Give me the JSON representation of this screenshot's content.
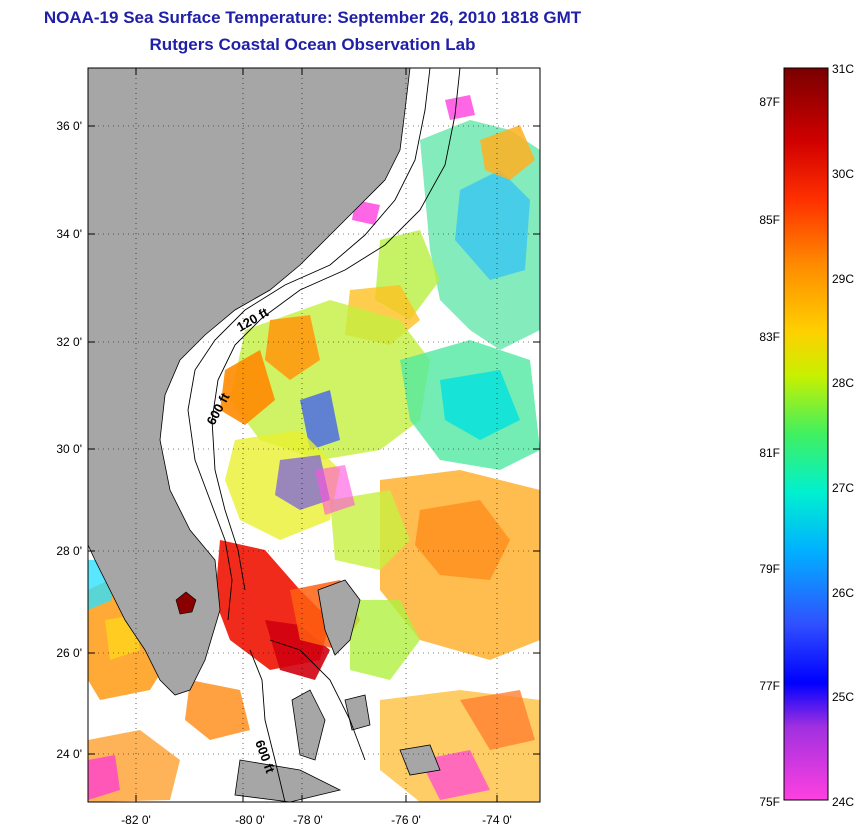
{
  "header": {
    "title": "NOAA-19 Sea Surface Temperature:  September 26, 2010 1818 GMT",
    "subtitle": "Rutgers Coastal Ocean Observation Lab"
  },
  "map": {
    "region": "US Southeast coast / Florida / Bahamas",
    "lon_ticks": [
      "-82 0'",
      "-80 0'",
      "-78 0'",
      "-76 0'",
      "-74 0'"
    ],
    "lat_ticks": [
      "36 0'",
      "34 0'",
      "32 0'",
      "30 0'",
      "28 0'",
      "26 0'",
      "24 0'"
    ],
    "contour_labels": [
      "120 ft",
      "600 ft",
      "600 ft"
    ],
    "colors": {
      "land": "#a6a6a6",
      "cloud": "#ffffff"
    }
  },
  "colorbar": {
    "celsius_labels": [
      "31C",
      "30C",
      "29C",
      "28C",
      "27C",
      "26C",
      "25C",
      "24C"
    ],
    "fahrenheit_labels": [
      "87F",
      "85F",
      "83F",
      "81F",
      "79F",
      "77F",
      "75F"
    ],
    "gradient": [
      "#7a0000",
      "#d00000",
      "#ff3000",
      "#ff8c00",
      "#ffd000",
      "#c8f000",
      "#40f060",
      "#00f0d0",
      "#00b0ff",
      "#3050ff",
      "#0000ff",
      "#a030e0",
      "#ff40e0"
    ]
  }
}
